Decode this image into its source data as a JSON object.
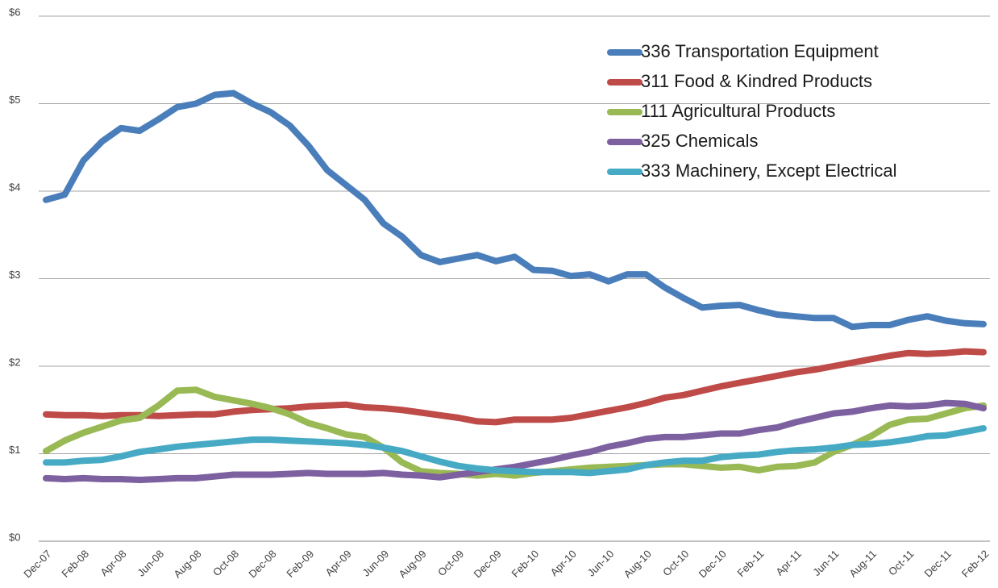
{
  "chart_data": {
    "type": "line",
    "categories": [
      "Dec-07",
      null,
      "Feb-08",
      null,
      "Apr-08",
      null,
      "Jun-08",
      null,
      "Aug-08",
      null,
      "Oct-08",
      null,
      "Dec-08",
      null,
      "Feb-09",
      null,
      "Apr-09",
      null,
      "Jun-09",
      null,
      "Aug-09",
      null,
      "Oct-09",
      null,
      "Dec-09",
      null,
      "Feb-10",
      null,
      "Apr-10",
      null,
      "Jun-10",
      null,
      "Aug-10",
      null,
      "Oct-10",
      null,
      "Dec-10",
      null,
      "Feb-11",
      null,
      "Apr-11",
      null,
      "Jun-11",
      null,
      "Aug-11",
      null,
      "Oct-11",
      null,
      "Dec-11",
      null,
      "Feb-12"
    ],
    "series": [
      {
        "name": "336 Transportation Equipment",
        "color": "#4a7ebb",
        "values": [
          3.9,
          3.96,
          4.35,
          4.57,
          4.72,
          4.69,
          4.82,
          4.96,
          5.0,
          5.1,
          5.12,
          5.0,
          4.9,
          4.75,
          4.52,
          4.24,
          4.07,
          3.9,
          3.63,
          3.48,
          3.27,
          3.19,
          3.23,
          3.27,
          3.2,
          3.25,
          3.1,
          3.09,
          3.03,
          3.05,
          2.97,
          3.05,
          3.05,
          2.9,
          2.78,
          2.67,
          2.69,
          2.7,
          2.64,
          2.59,
          2.57,
          2.55,
          2.55,
          2.45,
          2.47,
          2.47,
          2.53,
          2.57,
          2.52,
          2.49,
          2.48
        ]
      },
      {
        "name": "311 Food & Kindred Products",
        "color": "#be4b48",
        "values": [
          1.45,
          1.44,
          1.44,
          1.43,
          1.44,
          1.44,
          1.43,
          1.44,
          1.45,
          1.45,
          1.48,
          1.5,
          1.51,
          1.52,
          1.54,
          1.55,
          1.56,
          1.53,
          1.52,
          1.5,
          1.47,
          1.44,
          1.41,
          1.37,
          1.36,
          1.39,
          1.39,
          1.39,
          1.41,
          1.45,
          1.49,
          1.53,
          1.58,
          1.64,
          1.67,
          1.72,
          1.77,
          1.81,
          1.85,
          1.89,
          1.93,
          1.96,
          2.0,
          2.04,
          2.08,
          2.12,
          2.15,
          2.14,
          2.15,
          2.17,
          2.16
        ]
      },
      {
        "name": "111 Agricultural Products",
        "color": "#98b954",
        "values": [
          1.03,
          1.15,
          1.24,
          1.31,
          1.38,
          1.41,
          1.55,
          1.72,
          1.73,
          1.65,
          1.61,
          1.57,
          1.52,
          1.45,
          1.35,
          1.29,
          1.22,
          1.19,
          1.07,
          0.9,
          0.8,
          0.78,
          0.77,
          0.75,
          0.77,
          0.75,
          0.78,
          0.8,
          0.82,
          0.84,
          0.85,
          0.86,
          0.87,
          0.88,
          0.88,
          0.86,
          0.84,
          0.85,
          0.81,
          0.85,
          0.86,
          0.9,
          1.02,
          1.1,
          1.2,
          1.33,
          1.39,
          1.4,
          1.46,
          1.52,
          1.55
        ]
      },
      {
        "name": "325 Chemicals",
        "color": "#7d60a0",
        "values": [
          0.72,
          0.71,
          0.72,
          0.71,
          0.71,
          0.7,
          0.71,
          0.72,
          0.72,
          0.74,
          0.76,
          0.76,
          0.76,
          0.77,
          0.78,
          0.77,
          0.77,
          0.77,
          0.78,
          0.76,
          0.75,
          0.73,
          0.76,
          0.79,
          0.82,
          0.85,
          0.89,
          0.93,
          0.98,
          1.02,
          1.08,
          1.12,
          1.17,
          1.19,
          1.19,
          1.21,
          1.23,
          1.23,
          1.27,
          1.3,
          1.36,
          1.41,
          1.46,
          1.48,
          1.52,
          1.55,
          1.54,
          1.55,
          1.58,
          1.57,
          1.52
        ]
      },
      {
        "name": "333 Machinery, Except Electrical",
        "color": "#46aac5",
        "values": [
          0.9,
          0.9,
          0.92,
          0.93,
          0.97,
          1.02,
          1.05,
          1.08,
          1.1,
          1.12,
          1.14,
          1.16,
          1.16,
          1.15,
          1.14,
          1.13,
          1.12,
          1.1,
          1.07,
          1.03,
          0.97,
          0.91,
          0.86,
          0.83,
          0.81,
          0.8,
          0.79,
          0.79,
          0.79,
          0.78,
          0.8,
          0.82,
          0.87,
          0.9,
          0.92,
          0.92,
          0.96,
          0.98,
          0.99,
          1.02,
          1.04,
          1.05,
          1.07,
          1.1,
          1.11,
          1.13,
          1.16,
          1.2,
          1.21,
          1.25,
          1.29
        ]
      }
    ],
    "ylim": [
      0,
      6
    ],
    "yticks": [
      {
        "value": 0,
        "label": "$0"
      },
      {
        "value": 1,
        "label": "$1"
      },
      {
        "value": 2,
        "label": "$2"
      },
      {
        "value": 3,
        "label": "$3"
      },
      {
        "value": 4,
        "label": "$4"
      },
      {
        "value": 5,
        "label": "$5"
      },
      {
        "value": 6,
        "label": "$6"
      }
    ],
    "grid": true,
    "legend": "top-right"
  }
}
